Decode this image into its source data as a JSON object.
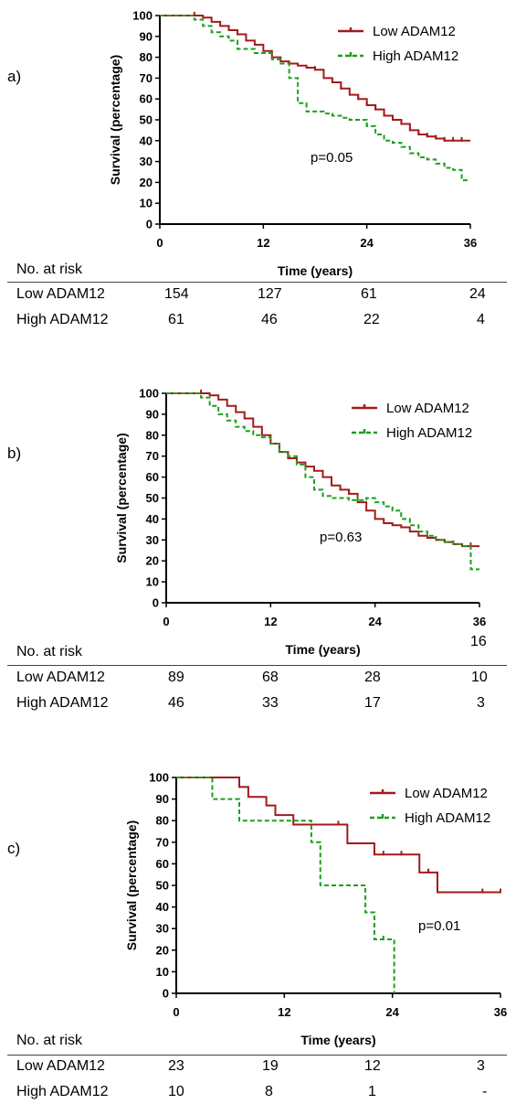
{
  "colors": {
    "low": "#a31a1c",
    "high": "#1f9e1f",
    "axis": "#000000"
  },
  "table_header": "No. at risk",
  "chart_data": [
    {
      "type": "line",
      "panel_label": "a)",
      "ylabel": "Survival  (percentage)",
      "xlabel": "Time (years)",
      "xlim": [
        0,
        36
      ],
      "ylim": [
        0,
        100
      ],
      "xticks": [
        "0",
        "12",
        "24",
        "36"
      ],
      "yticks": [
        "0",
        "10",
        "20",
        "30",
        "40",
        "50",
        "60",
        "70",
        "80",
        "90",
        "100"
      ],
      "pvalue": "p=0.05",
      "legend_position": "top-right",
      "series": [
        {
          "name": "Low ADAM12",
          "style": "solid",
          "x": [
            0,
            4,
            5,
            6,
            7,
            8,
            9,
            10,
            11,
            12,
            13,
            14,
            15,
            16,
            17,
            18,
            19,
            20,
            21,
            22,
            23,
            24,
            25,
            26,
            27,
            28,
            29,
            30,
            31,
            32,
            33,
            34,
            35,
            36
          ],
          "y": [
            100,
            100,
            99,
            97,
            95,
            93,
            91,
            88,
            86,
            83,
            80,
            78,
            77,
            76,
            75,
            74,
            70,
            68,
            65,
            62,
            60,
            57,
            55,
            52,
            50,
            48,
            45,
            43,
            42,
            41,
            40,
            40,
            40,
            40
          ],
          "censor_x": [
            4,
            18,
            21,
            23,
            24,
            25,
            26,
            27,
            28,
            29,
            30,
            31,
            32,
            33,
            34,
            35
          ]
        },
        {
          "name": "High ADAM12",
          "style": "dashed",
          "x": [
            0,
            3,
            4,
            5,
            6,
            7,
            8,
            9,
            11,
            13,
            14,
            15,
            16,
            17,
            19,
            20,
            21,
            22,
            23,
            24,
            25,
            26,
            27,
            28,
            29,
            30,
            31,
            32,
            33,
            34,
            35,
            36
          ],
          "y": [
            100,
            100,
            98,
            95,
            92,
            90,
            88,
            84,
            82,
            79,
            77,
            70,
            58,
            54,
            53,
            52,
            51,
            50,
            50,
            47,
            43,
            40,
            39,
            37,
            34,
            32,
            31,
            29,
            27,
            26,
            21,
            21
          ],
          "censor_x": [
            24
          ]
        }
      ],
      "risk": {
        "Low ADAM12": [
          "154",
          "127",
          "61",
          "24"
        ],
        "High ADAM12": [
          "61",
          "46",
          "22",
          "4"
        ]
      }
    },
    {
      "type": "line",
      "panel_label": "b)",
      "ylabel": "Survival  (percentage)",
      "xlabel": "Time (years)",
      "xlim": [
        0,
        36
      ],
      "ylim": [
        0,
        100
      ],
      "xticks": [
        "0",
        "12",
        "24",
        "36"
      ],
      "yticks": [
        "0",
        "10",
        "20",
        "30",
        "40",
        "50",
        "60",
        "70",
        "80",
        "90",
        "100"
      ],
      "pvalue": "p=0.63",
      "extra_label": "16",
      "legend_position": "top-right",
      "series": [
        {
          "name": "Low ADAM12",
          "style": "solid",
          "x": [
            0,
            4,
            5,
            6,
            7,
            8,
            9,
            10,
            11,
            12,
            13,
            14,
            15,
            16,
            17,
            18,
            19,
            20,
            21,
            22,
            23,
            24,
            25,
            26,
            27,
            28,
            29,
            30,
            31,
            32,
            33,
            34,
            35,
            36
          ],
          "y": [
            100,
            100,
            99,
            97,
            94,
            91,
            88,
            84,
            80,
            76,
            72,
            69,
            67,
            65,
            63,
            60,
            56,
            54,
            52,
            48,
            44,
            40,
            38,
            37,
            36,
            34,
            32,
            31,
            30,
            29,
            28,
            27,
            27,
            27
          ],
          "censor_x": [
            4,
            20,
            21,
            33,
            35
          ]
        },
        {
          "name": "High ADAM12",
          "style": "dashed",
          "x": [
            0,
            3,
            4,
            5,
            6,
            7,
            8,
            9,
            10,
            11,
            12,
            13,
            14,
            15,
            16,
            17,
            18,
            19,
            20,
            21,
            22,
            23,
            24,
            25,
            26,
            27,
            28,
            29,
            30,
            31,
            32,
            33,
            34,
            35,
            36
          ],
          "y": [
            100,
            100,
            98,
            94,
            90,
            87,
            84,
            82,
            80,
            79,
            76,
            72,
            70,
            66,
            60,
            54,
            51,
            50,
            50,
            49,
            49,
            50,
            48,
            46,
            44,
            40,
            37,
            34,
            32,
            30,
            29,
            28,
            27,
            16,
            16
          ],
          "censor_x": [
            22
          ]
        }
      ],
      "risk": {
        "Low ADAM12": [
          "89",
          "68",
          "28",
          "10"
        ],
        "High ADAM12": [
          "46",
          "33",
          "17",
          "3"
        ]
      }
    },
    {
      "type": "line",
      "panel_label": "c)",
      "ylabel": "Survival  (percentage)",
      "xlabel": "Time (years)",
      "xlim": [
        0,
        36
      ],
      "ylim": [
        0,
        100
      ],
      "xticks": [
        "0",
        "12",
        "24",
        "36"
      ],
      "yticks": [
        "0",
        "10",
        "20",
        "30",
        "40",
        "50",
        "60",
        "70",
        "80",
        "90",
        "100"
      ],
      "pvalue": "p=0.01",
      "legend_position": "top-right",
      "series": [
        {
          "name": "Low ADAM12",
          "style": "solid",
          "x": [
            0,
            7,
            8,
            9,
            10,
            11,
            12,
            13,
            14,
            15,
            16,
            17,
            18,
            19,
            20,
            21,
            22,
            23,
            24,
            25,
            26,
            27,
            28,
            29,
            30,
            31,
            32,
            33,
            34,
            35,
            36
          ],
          "y": [
            100,
            95.6,
            91,
            91,
            87,
            82.6,
            82.6,
            78.2,
            78.2,
            78.2,
            78.2,
            78.2,
            78.2,
            69.5,
            69.5,
            69.5,
            64.3,
            64.3,
            64.3,
            64.3,
            64.3,
            56,
            56,
            46.8,
            46.8,
            46.8,
            46.8,
            46.8,
            46.8,
            46.8,
            46.8
          ],
          "censor_x": [
            18,
            22,
            23,
            25,
            28,
            34,
            36
          ]
        },
        {
          "name": "High ADAM12",
          "style": "dashed",
          "x": [
            0,
            4,
            5,
            6,
            7,
            8,
            9,
            10,
            11,
            12,
            13,
            14,
            15,
            16,
            17,
            18,
            19,
            20,
            21,
            22,
            23,
            24,
            24.2
          ],
          "y": [
            100,
            90,
            90,
            90,
            80,
            80,
            80,
            80,
            80,
            80,
            80,
            80,
            70,
            50,
            50,
            50,
            50,
            50,
            37.5,
            25,
            25,
            25,
            0
          ],
          "censor_x": [
            23
          ]
        }
      ],
      "risk": {
        "Low ADAM12": [
          "23",
          "19",
          "12",
          "3"
        ],
        "High ADAM12": [
          "10",
          "8",
          "1",
          "-"
        ]
      }
    }
  ]
}
